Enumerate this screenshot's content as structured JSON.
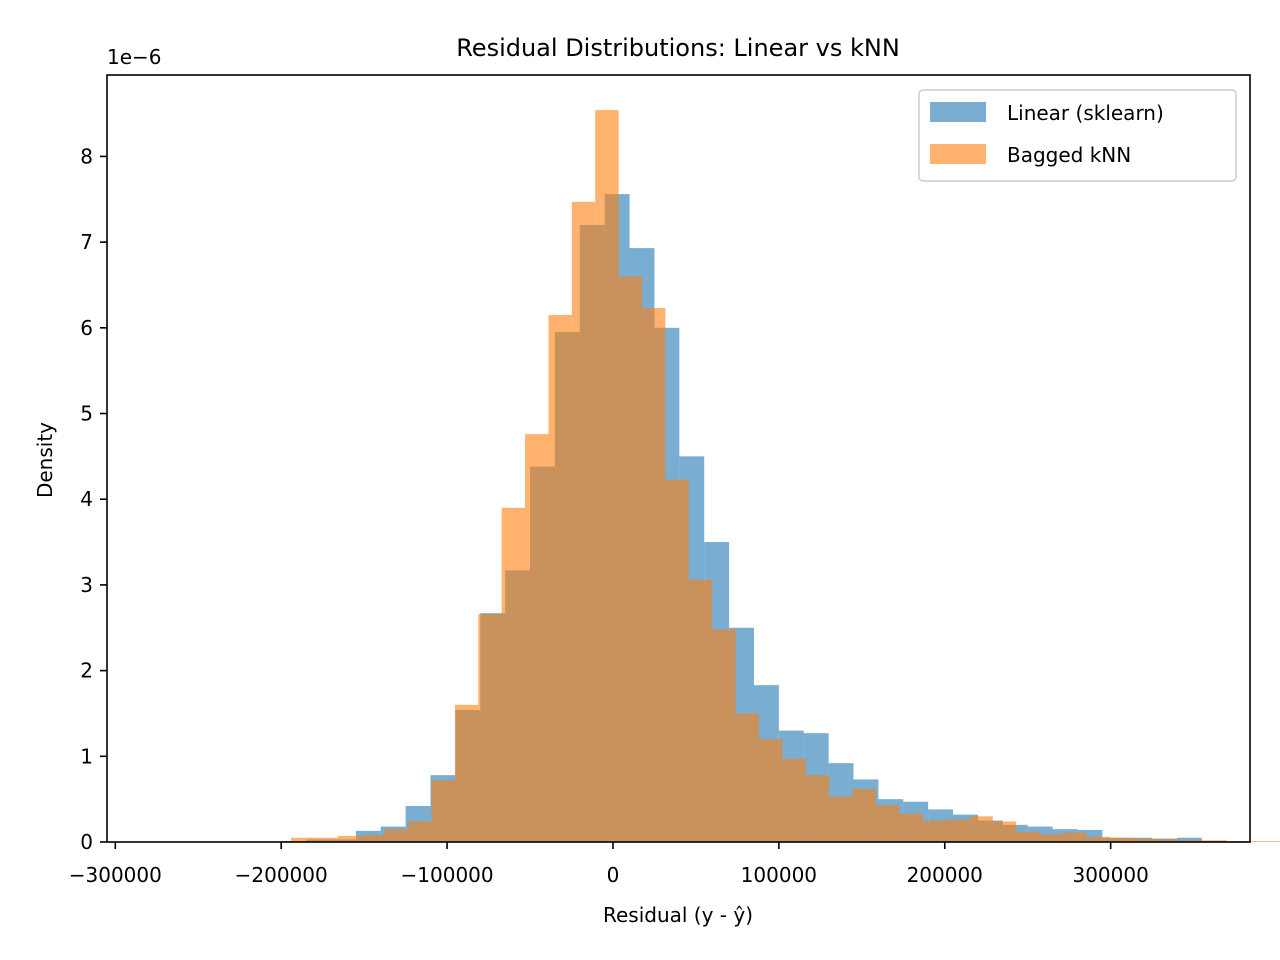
{
  "chart_data": {
    "type": "bar",
    "title": "Residual Distributions: Linear vs kNN",
    "xlabel": "Residual (y - ŷ)",
    "ylabel": "Density",
    "offset_text": "1e−6",
    "xlim": [
      -305000,
      384000
    ],
    "ylim": [
      0,
      8.95
    ],
    "xticks": [
      -300000,
      -200000,
      -100000,
      0,
      100000,
      200000,
      300000
    ],
    "xtick_labels": [
      "−300000",
      "−200000",
      "−100000",
      "0",
      "100000",
      "200000",
      "300000"
    ],
    "yticks": [
      0,
      1,
      2,
      3,
      4,
      5,
      6,
      7,
      8
    ],
    "ytick_labels": [
      "0",
      "1",
      "2",
      "3",
      "4",
      "5",
      "6",
      "7",
      "8"
    ],
    "grid": false,
    "legend_position": "top-right",
    "series": [
      {
        "name": "Linear (sklearn)",
        "color": "#1f77b4",
        "alpha": 0.6,
        "bin_start": -200000,
        "bin_width": 15000,
        "values": [
          0.01,
          0.03,
          0.03,
          0.13,
          0.18,
          0.42,
          0.78,
          1.54,
          2.67,
          3.17,
          4.38,
          5.95,
          7.2,
          7.56,
          6.93,
          6.0,
          4.5,
          3.5,
          2.5,
          1.83,
          1.3,
          1.27,
          0.92,
          0.73,
          0.5,
          0.47,
          0.38,
          0.32,
          0.25,
          0.2,
          0.18,
          0.15,
          0.14,
          0.05,
          0.05,
          0.04,
          0.05,
          0.01
        ]
      },
      {
        "name": "Bagged kNN",
        "color": "#ff7f0e",
        "alpha": 0.6,
        "bin_start": -194000,
        "bin_width": 14100,
        "values": [
          0.05,
          0.05,
          0.07,
          0.08,
          0.15,
          0.24,
          0.72,
          1.6,
          2.66,
          3.9,
          4.76,
          6.15,
          7.47,
          8.54,
          6.6,
          6.23,
          4.23,
          3.06,
          2.48,
          1.5,
          1.2,
          0.97,
          0.78,
          0.53,
          0.62,
          0.43,
          0.33,
          0.25,
          0.26,
          0.3,
          0.24,
          0.12,
          0.09,
          0.11,
          0.06,
          0.05,
          0.04,
          0.03,
          0.02,
          0.02,
          0.01,
          0.01,
          0.01,
          0.01,
          0.01
        ]
      }
    ]
  }
}
